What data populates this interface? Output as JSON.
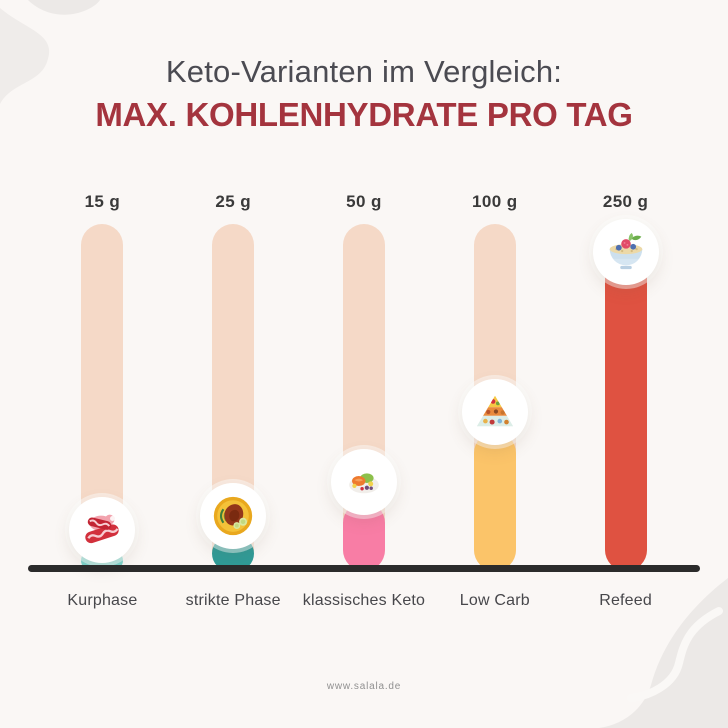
{
  "page": {
    "title_line1": "Keto-Varianten im Vergleich:",
    "title_line2": "MAX. KOHLENHYDRATE PRO TAG",
    "footer": "www.salala.de",
    "background_color": "#FAF7F5",
    "accent_color": "#A4343E",
    "title_color": "#4B4B52",
    "axis_color": "#2B2B2B",
    "track_color": "#F5D9C7"
  },
  "chart_data": {
    "type": "bar",
    "title": "Keto-Varianten im Vergleich: MAX. KOHLENHYDRATE PRO TAG",
    "categories": [
      "Kurphase",
      "strikte Phase",
      "klassisches Keto",
      "Low Carb",
      "Refeed"
    ],
    "values": [
      15,
      25,
      50,
      100,
      250
    ],
    "value_labels": [
      "15 g",
      "25 g",
      "50 g",
      "100 g",
      "250 g"
    ],
    "unit": "g",
    "xlabel": "",
    "ylabel": "",
    "ylim": [
      0,
      250
    ],
    "grid": false,
    "legend": false,
    "bar_colors": [
      "#7CD5CD",
      "#2F9B97",
      "#F87DA5",
      "#FBC469",
      "#DF5241"
    ],
    "icons": [
      "meat-icon",
      "steak-plate-icon",
      "keto-plate-icon",
      "food-pyramid-icon",
      "muesli-bowl-icon"
    ]
  }
}
